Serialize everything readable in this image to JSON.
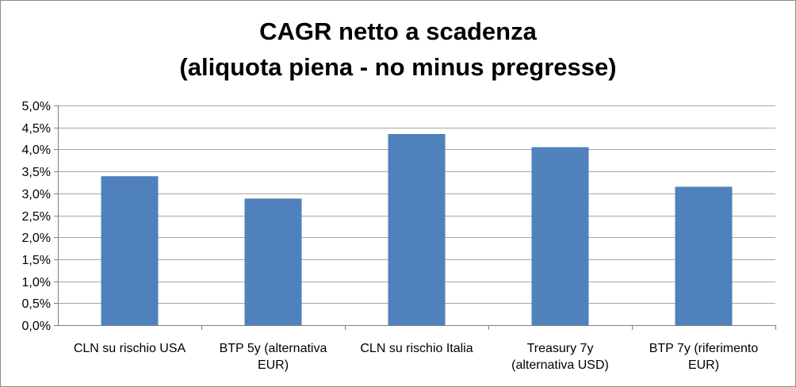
{
  "chart_data": {
    "type": "bar",
    "title": [
      "CAGR netto a scadenza",
      "(aliquota piena - no minus pregresse)"
    ],
    "categories": [
      [
        "CLN su rischio USA"
      ],
      [
        "BTP 5y (alternativa",
        "EUR)"
      ],
      [
        "CLN su rischio Italia"
      ],
      [
        "Treasury 7y",
        "(alternativa USD)"
      ],
      [
        "BTP 7y (riferimento",
        "EUR)"
      ]
    ],
    "values": [
      3.39,
      2.88,
      4.35,
      4.05,
      3.15
    ],
    "ylim": [
      0,
      5
    ],
    "yticks": [
      0,
      0.5,
      1,
      1.5,
      2,
      2.5,
      3,
      3.5,
      4,
      4.5,
      5
    ],
    "ytick_labels": [
      "0,0%",
      "0,5%",
      "1,0%",
      "1,5%",
      "2,0%",
      "2,5%",
      "3,0%",
      "3,5%",
      "4,0%",
      "4,5%",
      "5,0%"
    ],
    "xlabel": "",
    "ylabel": "",
    "grid": true,
    "legend": "none",
    "bar_color": "#4f81bd",
    "grid_color": "#a6a6a6"
  }
}
